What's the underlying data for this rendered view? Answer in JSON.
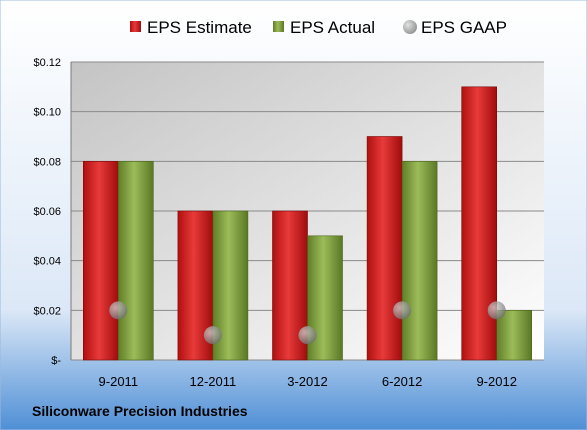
{
  "chart_data": {
    "type": "bar",
    "categories": [
      "9-2011",
      "12-2011",
      "3-2012",
      "6-2012",
      "9-2012"
    ],
    "series": [
      {
        "name": "EPS Estimate",
        "type": "bar",
        "color": "#cc1a1a",
        "values": [
          0.08,
          0.06,
          0.06,
          0.09,
          0.11
        ]
      },
      {
        "name": "EPS Actual",
        "type": "bar",
        "color": "#7a9a3a",
        "values": [
          0.08,
          0.06,
          0.05,
          0.08,
          0.02
        ]
      },
      {
        "name": "EPS GAAP",
        "type": "scatter",
        "color": "#9a9a9a",
        "values": [
          0.02,
          0.01,
          0.01,
          0.02,
          0.02
        ]
      }
    ],
    "ylim": [
      0,
      0.12
    ],
    "yticks": [
      0,
      0.02,
      0.04,
      0.06,
      0.08,
      0.1,
      0.12
    ],
    "ytick_labels": [
      "$-",
      "$0.02",
      "$0.04",
      "$0.06",
      "$0.08",
      "$0.10",
      "$0.12"
    ],
    "grid": true,
    "legend_position": "top",
    "footer": "Siliconware Precision Industries"
  }
}
